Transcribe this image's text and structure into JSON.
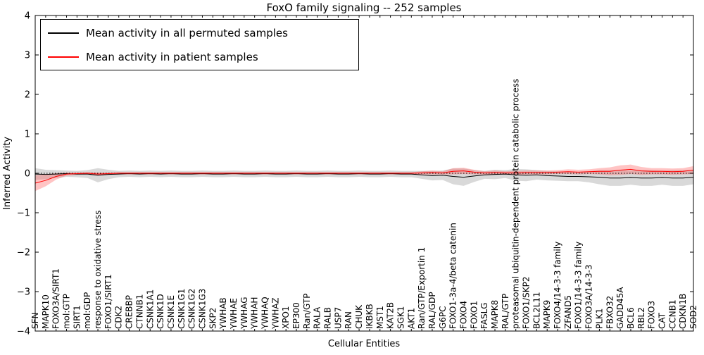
{
  "chart_data": {
    "type": "line",
    "title": "FoxO family signaling -- 252 samples",
    "xlabel": "Cellular Entities",
    "ylabel": "Inferred Activity",
    "ylim": [
      -4,
      4
    ],
    "yticks": [
      4,
      3,
      2,
      1,
      0,
      -1,
      -2,
      -3,
      -4
    ],
    "grid": false,
    "legend_position": "upper left",
    "zero_line": {
      "style": "dotted",
      "color": "#000000"
    },
    "categories": [
      "SFN",
      "MAPK10",
      "FOXO3A/SIRT1",
      "mol:GTP",
      "SIRT1",
      "mol:GDP",
      "response to oxidative stress",
      "FOXO1/SIRT1",
      "CDK2",
      "CREBBP",
      "CTNNB1",
      "CSNK1A1",
      "CSNK1D",
      "CSNK1E",
      "CSNK1G1",
      "CSNK1G2",
      "CSNK1G3",
      "SKP2",
      "YWHAB",
      "YWHAE",
      "YWHAG",
      "YWHAH",
      "YWHAQ",
      "YWHAZ",
      "XPO1",
      "EP300",
      "Ran/GTP",
      "RALA",
      "RALB",
      "USP7",
      "RAN",
      "CHUK",
      "IKBKB",
      "MST1",
      "KAT2B",
      "SGK1",
      "AKT1",
      "Ran/GTP/Exportin 1",
      "RAL/GDP",
      "G6PC",
      "FOXO1-3a-4/beta catenin",
      "FOXO4",
      "FOXO1",
      "FASLG",
      "MAPK8",
      "RAL/GTP",
      "proteasomal ubiquitin-dependent protein catabolic process",
      "FOXO1/SKP2",
      "BCL2L11",
      "MAPK9",
      "FOXO4/14-3-3 family",
      "ZFAND5",
      "FOXO1/14-3-3 family",
      "FOXO3A/14-3-3",
      "PLK1",
      "FBXO32",
      "GADD45A",
      "BCL6",
      "RBL2",
      "FOXO3",
      "CAT",
      "CCNB1",
      "CDKN1B",
      "SOD2"
    ],
    "series": [
      {
        "id": "permuted",
        "name": "Mean activity in all permuted samples",
        "color": "#000000",
        "band_color": "#aaaaaa",
        "band_opacity": 0.45,
        "values": [
          -0.02,
          -0.03,
          -0.02,
          -0.01,
          -0.02,
          -0.02,
          -0.05,
          -0.03,
          -0.02,
          -0.01,
          -0.02,
          -0.01,
          -0.02,
          -0.01,
          -0.02,
          -0.02,
          -0.01,
          -0.02,
          -0.02,
          -0.01,
          -0.02,
          -0.02,
          -0.01,
          -0.02,
          -0.02,
          -0.01,
          -0.02,
          -0.02,
          -0.01,
          -0.02,
          -0.02,
          -0.01,
          -0.02,
          -0.02,
          -0.01,
          -0.02,
          -0.02,
          -0.04,
          -0.06,
          -0.05,
          -0.08,
          -0.1,
          -0.07,
          -0.04,
          -0.03,
          -0.02,
          -0.04,
          -0.05,
          -0.04,
          -0.06,
          -0.07,
          -0.08,
          -0.08,
          -0.09,
          -0.1,
          -0.12,
          -0.12,
          -0.11,
          -0.12,
          -0.12,
          -0.11,
          -0.12,
          -0.12,
          -0.1
        ],
        "band": [
          0.15,
          0.12,
          0.1,
          0.08,
          0.08,
          0.1,
          0.18,
          0.12,
          0.08,
          0.08,
          0.08,
          0.08,
          0.08,
          0.08,
          0.08,
          0.08,
          0.08,
          0.08,
          0.08,
          0.08,
          0.08,
          0.08,
          0.08,
          0.08,
          0.08,
          0.08,
          0.08,
          0.08,
          0.08,
          0.08,
          0.08,
          0.08,
          0.08,
          0.08,
          0.08,
          0.08,
          0.08,
          0.1,
          0.12,
          0.12,
          0.2,
          0.22,
          0.15,
          0.1,
          0.12,
          0.1,
          0.15,
          0.15,
          0.12,
          0.12,
          0.12,
          0.12,
          0.12,
          0.14,
          0.18,
          0.2,
          0.2,
          0.18,
          0.2,
          0.2,
          0.18,
          0.2,
          0.2,
          0.18
        ]
      },
      {
        "id": "patient",
        "name": "Mean activity in patient samples",
        "color": "#ff0000",
        "band_color": "#ff5555",
        "band_opacity": 0.35,
        "values": [
          -0.25,
          -0.18,
          -0.08,
          -0.02,
          -0.01,
          0.0,
          -0.02,
          -0.01,
          0.0,
          0.0,
          0.0,
          0.0,
          0.0,
          0.0,
          0.0,
          0.0,
          0.0,
          0.0,
          0.0,
          0.0,
          0.0,
          0.0,
          0.0,
          0.0,
          0.0,
          0.0,
          0.0,
          0.0,
          0.0,
          0.0,
          0.0,
          0.0,
          0.0,
          0.0,
          0.0,
          0.0,
          0.0,
          0.01,
          0.02,
          0.01,
          0.05,
          0.06,
          0.03,
          0.01,
          0.02,
          0.01,
          0.01,
          0.02,
          0.02,
          0.02,
          0.03,
          0.04,
          0.03,
          0.04,
          0.05,
          0.05,
          0.08,
          0.1,
          0.06,
          0.05,
          0.05,
          0.04,
          0.05,
          0.08
        ],
        "band": [
          0.2,
          0.15,
          0.08,
          0.04,
          0.03,
          0.03,
          0.04,
          0.03,
          0.03,
          0.03,
          0.03,
          0.03,
          0.03,
          0.03,
          0.03,
          0.03,
          0.03,
          0.03,
          0.03,
          0.03,
          0.03,
          0.03,
          0.03,
          0.03,
          0.03,
          0.03,
          0.03,
          0.03,
          0.03,
          0.03,
          0.03,
          0.03,
          0.03,
          0.03,
          0.03,
          0.03,
          0.03,
          0.04,
          0.05,
          0.04,
          0.08,
          0.08,
          0.06,
          0.04,
          0.05,
          0.04,
          0.05,
          0.05,
          0.05,
          0.05,
          0.05,
          0.06,
          0.06,
          0.06,
          0.08,
          0.1,
          0.12,
          0.12,
          0.1,
          0.08,
          0.08,
          0.08,
          0.08,
          0.1
        ]
      }
    ]
  }
}
